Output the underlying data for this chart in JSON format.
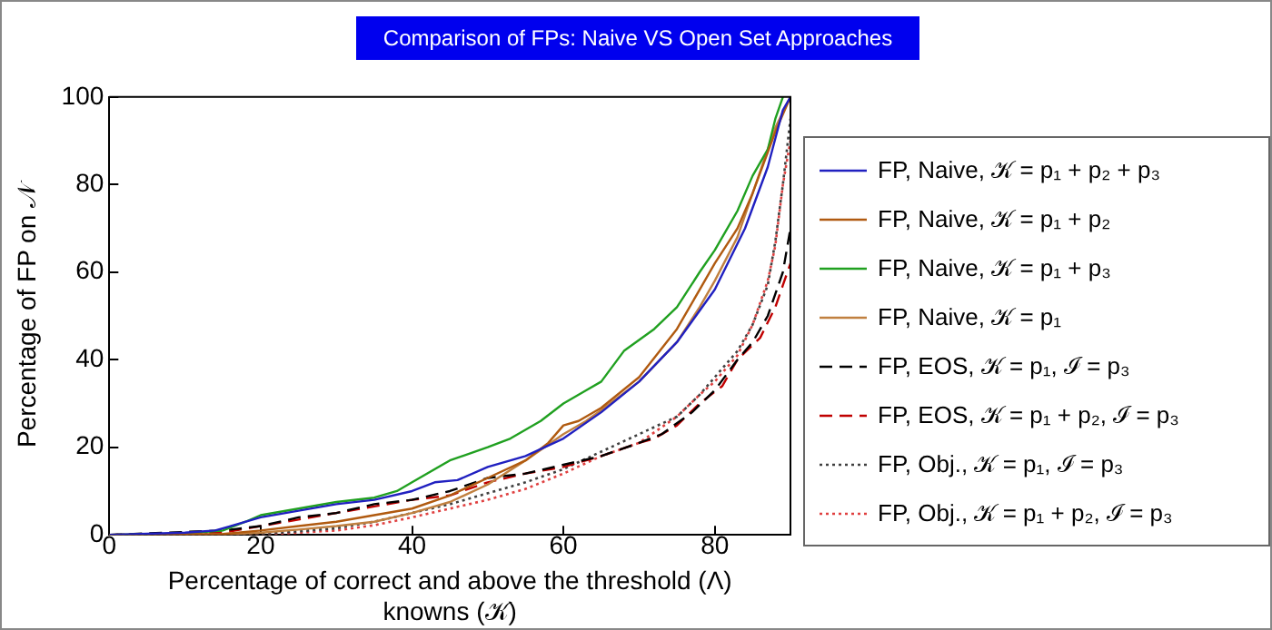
{
  "chart_data": {
    "type": "line",
    "title": "Comparison of FPs: Naive VS Open Set Approaches",
    "xlabel": "Percentage of correct and above the threshold (Λ) knowns (𝒦)",
    "ylabel": "Percentage of FP on 𝒩",
    "xlim": [
      0,
      90
    ],
    "ylim": [
      0,
      100
    ],
    "xticks": [
      0,
      20,
      40,
      60,
      80
    ],
    "yticks": [
      0,
      20,
      40,
      60,
      80,
      100
    ],
    "grid": false,
    "legend": "right",
    "marker": "none",
    "series": [
      {
        "name": "FP, Naive, 𝒦 = p₁ + p₂ + p₃",
        "color": "#2020c0",
        "line_style": "solid",
        "x": [
          0,
          10,
          14,
          16,
          20,
          25,
          30,
          35,
          40,
          43,
          46,
          50,
          55,
          60,
          65,
          70,
          75,
          80,
          84,
          87,
          89,
          90
        ],
        "values": [
          0,
          0.5,
          1,
          2,
          4,
          5.5,
          7,
          8,
          10,
          12,
          12.5,
          15.5,
          18,
          22,
          28,
          35,
          44,
          56,
          70,
          84,
          97,
          100
        ]
      },
      {
        "name": "FP, Naive, 𝒦 = p₁ + p₂",
        "color": "#b05a10",
        "line_style": "solid",
        "x": [
          0,
          15,
          20,
          25,
          30,
          35,
          40,
          45,
          50,
          55,
          58,
          60,
          62,
          65,
          70,
          75,
          78,
          80,
          83,
          85,
          88,
          90
        ],
        "values": [
          0,
          0.2,
          1,
          2,
          3,
          4.5,
          6,
          9,
          13,
          17,
          21,
          25,
          26,
          29,
          36,
          47,
          56,
          62,
          70,
          78,
          92,
          100
        ]
      },
      {
        "name": "FP, Naive, 𝒦 = p₁ + p₃",
        "color": "#20a020",
        "line_style": "solid",
        "x": [
          0,
          10,
          15,
          18,
          20,
          25,
          30,
          35,
          38,
          40,
          45,
          50,
          53,
          57,
          60,
          63,
          65,
          68,
          72,
          75,
          78,
          80,
          83,
          85,
          87,
          88,
          89
        ],
        "values": [
          0,
          0.3,
          1,
          3,
          4.5,
          6,
          7.5,
          8.5,
          10,
          12,
          17,
          20,
          22,
          26,
          30,
          33,
          35,
          42,
          47,
          52,
          60,
          65,
          74,
          82,
          88,
          95,
          100
        ]
      },
      {
        "name": "FP, Naive, 𝒦 = p₁",
        "color": "#c08040",
        "line_style": "solid",
        "x": [
          0,
          15,
          20,
          25,
          30,
          35,
          40,
          45,
          50,
          55,
          60,
          63,
          65,
          70,
          75,
          78,
          80,
          83,
          85,
          88,
          90
        ],
        "values": [
          0,
          0.1,
          0.5,
          1.2,
          2,
          3,
          5,
          7.5,
          11.5,
          17,
          23,
          26,
          28.5,
          35,
          44,
          52,
          58,
          68,
          78,
          93,
          100
        ]
      },
      {
        "name": "FP, EOS, 𝒦 = p₁, ℐ = p₃",
        "color": "#000000",
        "line_style": "dashed",
        "x": [
          0,
          15,
          20,
          25,
          30,
          35,
          40,
          45,
          50,
          55,
          60,
          65,
          70,
          73,
          77,
          80,
          83,
          85,
          87,
          88,
          89,
          90
        ],
        "values": [
          0,
          1,
          2,
          4,
          5,
          7,
          8,
          10,
          13,
          14,
          16,
          18,
          21,
          23,
          28,
          33,
          40,
          44,
          50,
          55,
          60,
          70
        ]
      },
      {
        "name": "FP, EOS, 𝒦 = p₁ + p₂, ℐ = p₃",
        "color": "#c00000",
        "line_style": "dashed",
        "x": [
          0,
          15,
          20,
          25,
          30,
          35,
          40,
          45,
          50,
          55,
          60,
          65,
          70,
          72,
          75,
          78,
          81,
          83,
          86,
          88,
          89,
          90
        ],
        "values": [
          0,
          0.5,
          2,
          3.5,
          5,
          6.5,
          8,
          9,
          12,
          14,
          15.5,
          18,
          21,
          22,
          25,
          30,
          34,
          40,
          45,
          52,
          57,
          62
        ]
      },
      {
        "name": "FP, Obj., 𝒦 = p₁, ℐ = p₃",
        "color": "#404040",
        "line_style": "dotted",
        "x": [
          0,
          20,
          25,
          30,
          35,
          40,
          45,
          50,
          55,
          60,
          65,
          70,
          75,
          78,
          80,
          83,
          85,
          87,
          88,
          89,
          90
        ],
        "values": [
          0,
          0.2,
          0.8,
          1.5,
          3,
          5,
          7,
          9.5,
          12,
          15,
          19,
          23,
          27,
          32,
          36,
          42,
          48,
          57,
          67,
          80,
          95
        ]
      },
      {
        "name": "FP, Obj., 𝒦 = p₁ + p₂, ℐ = p₃",
        "color": "#e04040",
        "line_style": "dotted",
        "x": [
          0,
          20,
          25,
          30,
          35,
          40,
          45,
          50,
          55,
          60,
          65,
          70,
          75,
          78,
          80,
          83,
          85,
          87,
          88,
          89,
          90
        ],
        "values": [
          0,
          0.1,
          0.5,
          1,
          2.2,
          4,
          6,
          8,
          10.5,
          14,
          18,
          21,
          27,
          32,
          35,
          41,
          48,
          58,
          66,
          80,
          90
        ]
      }
    ]
  }
}
